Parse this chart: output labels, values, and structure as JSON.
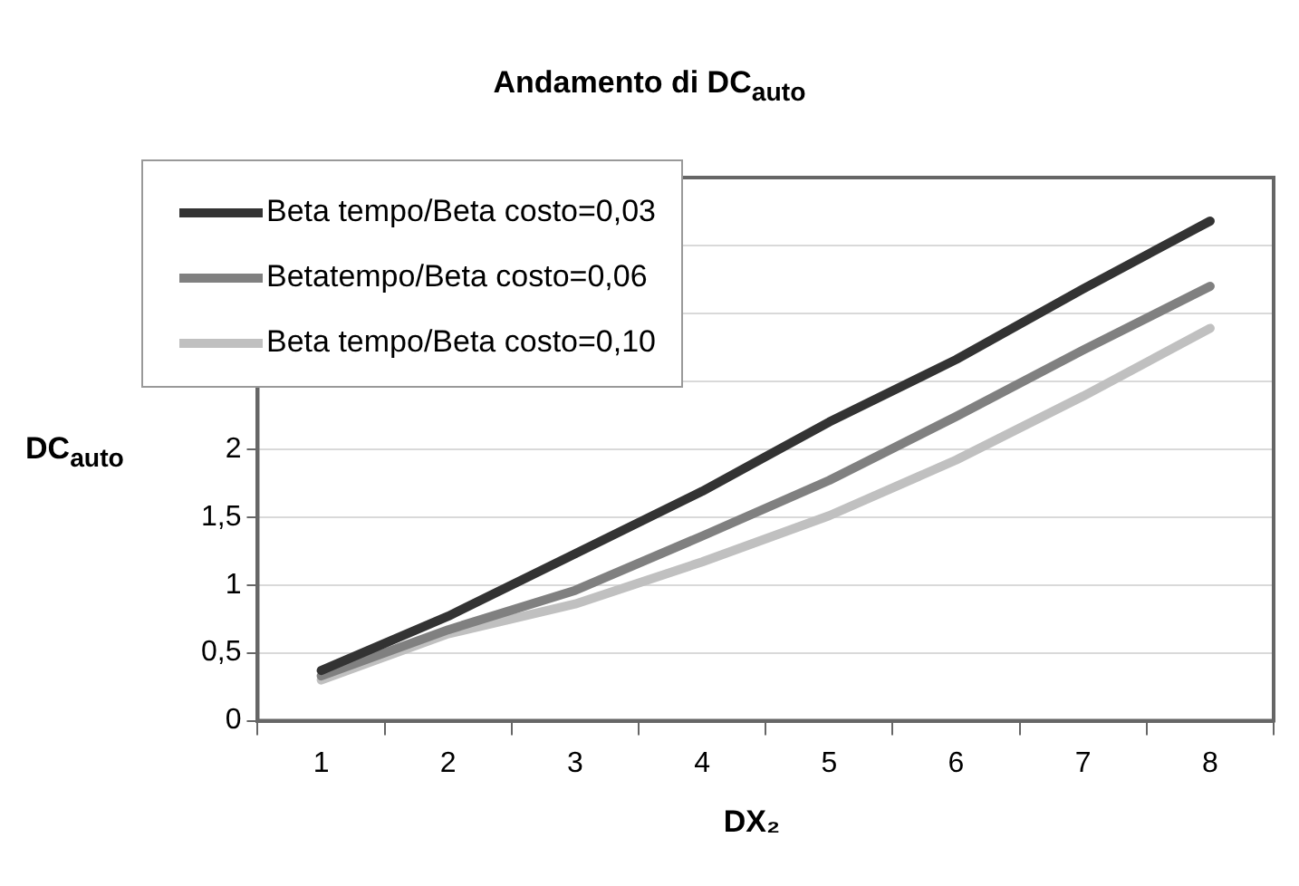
{
  "chart_data": {
    "type": "line",
    "title": "Andamento di DC$_{auto}$",
    "xlabel": "DX₂",
    "ylabel": "DC$_{auto}$",
    "categories": [
      "1",
      "2",
      "3",
      "4",
      "5",
      "6",
      "7",
      "8"
    ],
    "series": [
      {
        "name": "Beta tempo/Beta costo=0,03",
        "color": "#333333",
        "values": [
          0.37,
          0.77,
          1.23,
          1.69,
          2.2,
          2.66,
          3.18,
          3.68
        ]
      },
      {
        "name": "Betatempo/Beta costo=0,06",
        "color": "#808080",
        "values": [
          0.33,
          0.67,
          0.96,
          1.36,
          1.77,
          2.24,
          2.73,
          3.2
        ]
      },
      {
        "name": "Beta tempo/Beta costo=0,10",
        "color": "#c0c0c0",
        "values": [
          0.3,
          0.64,
          0.86,
          1.17,
          1.51,
          1.92,
          2.39,
          2.89
        ]
      }
    ],
    "ylim": [
      0,
      4
    ],
    "yticks": [
      0,
      {
        "value": 0.5,
        "label": "0,5"
      },
      1,
      {
        "value": 1.5,
        "label": "1,5"
      },
      2,
      {
        "value": 2.5,
        "label": null
      },
      {
        "value": 3,
        "label": null
      },
      {
        "value": 3.5,
        "label": null
      },
      {
        "value": 4,
        "label": null
      }
    ],
    "grid": "y",
    "legend": "top left",
    "marker": "none",
    "line_style": "solid"
  }
}
